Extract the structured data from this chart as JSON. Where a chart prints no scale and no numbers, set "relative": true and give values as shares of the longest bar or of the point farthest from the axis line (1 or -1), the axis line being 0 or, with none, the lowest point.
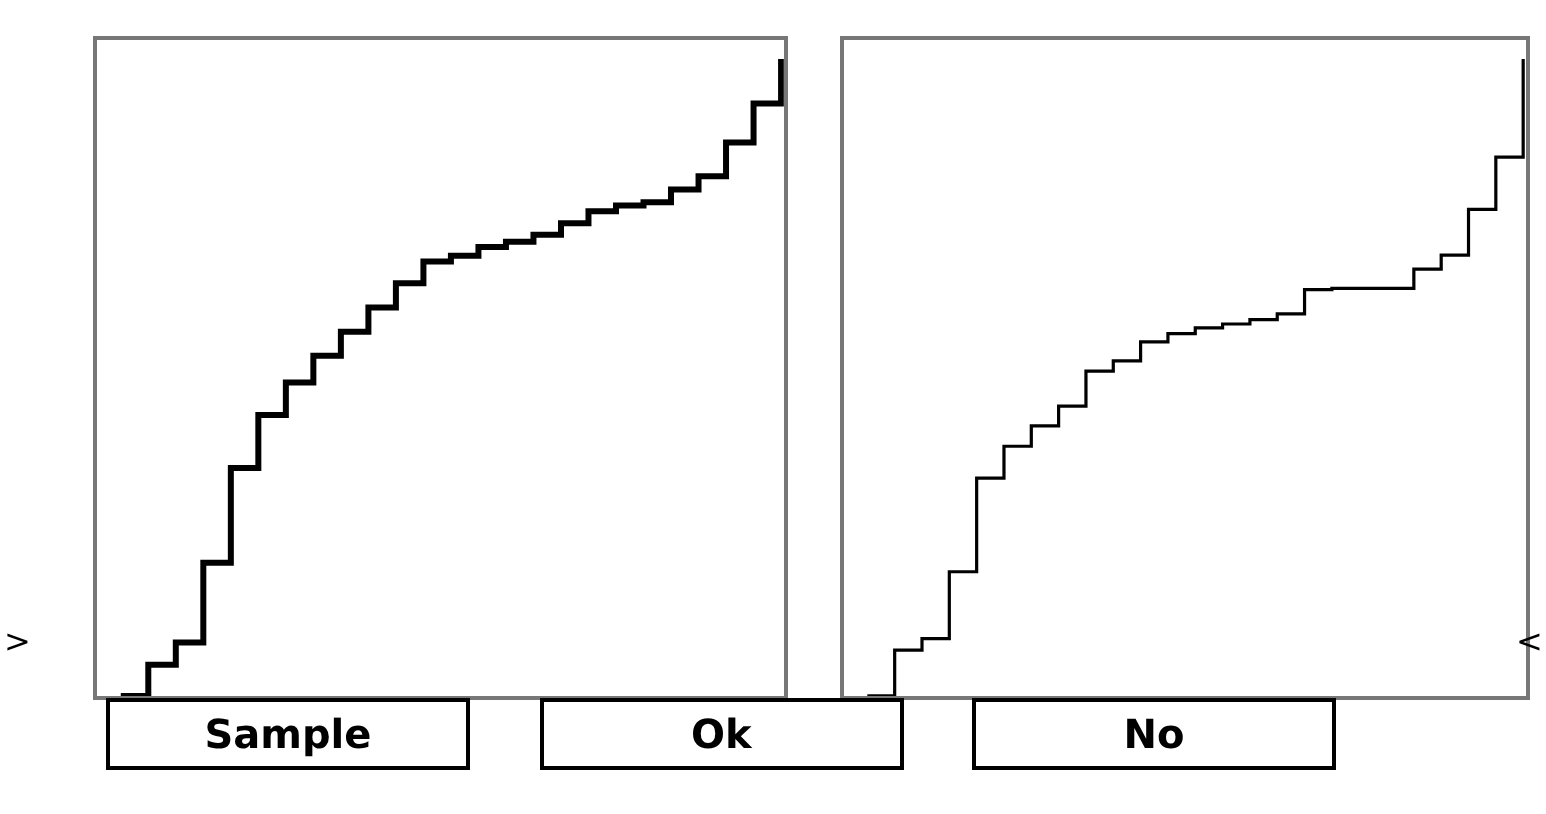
{
  "chart_data": [
    {
      "type": "step",
      "relative": true,
      "categories": [
        null,
        null,
        null,
        null,
        null,
        null,
        null,
        null,
        null,
        null,
        null,
        null,
        null,
        null,
        null,
        null,
        null,
        null,
        null,
        null,
        null,
        null,
        null,
        null,
        null
      ],
      "series": [
        {
          "color": "#000000",
          "values": [
            0,
            0.049,
            0.084,
            0.209,
            0.358,
            0.441,
            0.492,
            0.534,
            0.572,
            0.61,
            0.648,
            0.682,
            0.691,
            0.705,
            0.713,
            0.724,
            0.742,
            0.761,
            0.77,
            0.775,
            0.795,
            0.816,
            0.869,
            0.93,
            1
          ]
        }
      ],
      "annotations": [
        ">"
      ]
    },
    {
      "type": "step",
      "relative": true,
      "categories": [
        null,
        null,
        null,
        null,
        null,
        null,
        null,
        null,
        null,
        null,
        null,
        null,
        null,
        null,
        null,
        null,
        null,
        null,
        null,
        null,
        null,
        null,
        null,
        null,
        null
      ],
      "series": [
        {
          "color": "#000000",
          "values": [
            0,
            0.072,
            0.09,
            0.195,
            0.342,
            0.392,
            0.424,
            0.455,
            0.51,
            0.526,
            0.556,
            0.569,
            0.578,
            0.584,
            0.591,
            0.6,
            0.638,
            0.64,
            0.64,
            0.64,
            0.67,
            0.692,
            0.764,
            0.846,
            1
          ]
        }
      ],
      "annotations": [
        "<"
      ]
    },
    {
      "type": "other",
      "annotations": [
        "Sample",
        "Ok",
        "No"
      ]
    }
  ]
}
